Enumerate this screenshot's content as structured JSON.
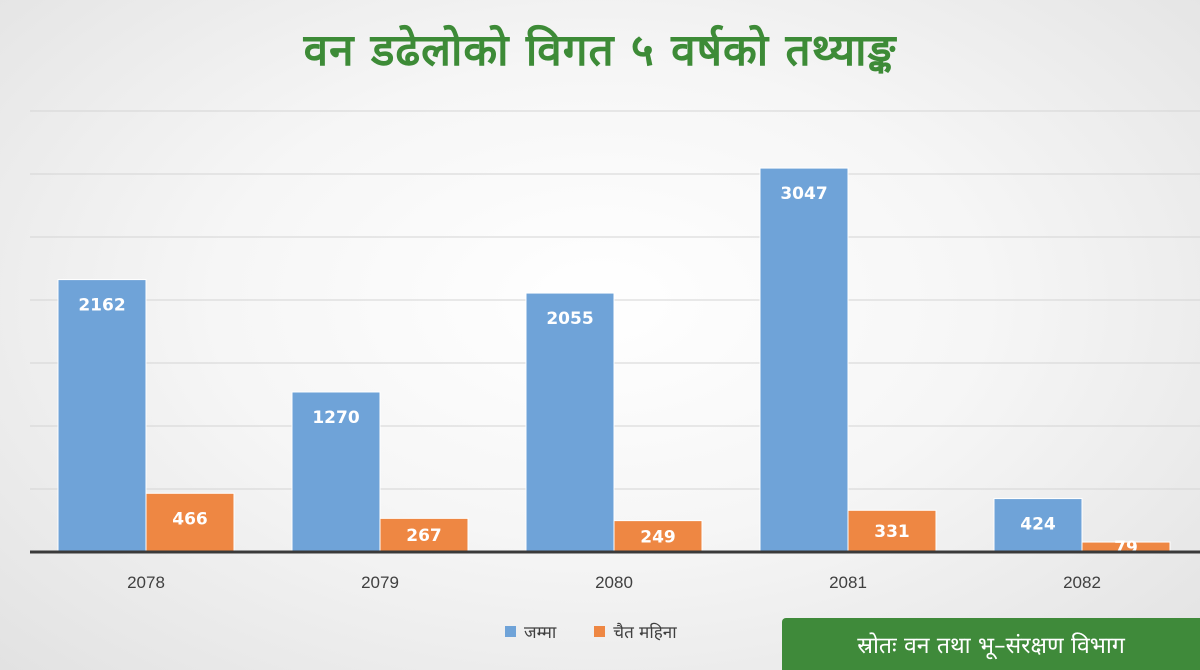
{
  "chart_data": {
    "type": "bar",
    "title": "वन डढेलोको विगत ५ वर्षको तथ्याङ्क",
    "categories": [
      "2078",
      "2079",
      "2080",
      "2081",
      "2082"
    ],
    "series": [
      {
        "name": "जम्मा",
        "color": "#6fa3d8",
        "values": [
          2162,
          1270,
          2055,
          3047,
          424
        ]
      },
      {
        "name": "चैत महिना",
        "color": "#ee8743",
        "values": [
          466,
          267,
          249,
          331,
          79
        ]
      }
    ],
    "xlabel": "",
    "ylabel": "",
    "ylim": [
      0,
      3500
    ],
    "grid": true,
    "legend_position": "bottom-center",
    "source": "स्रोतः वन तथा भू–संरक्षण विभाग"
  }
}
